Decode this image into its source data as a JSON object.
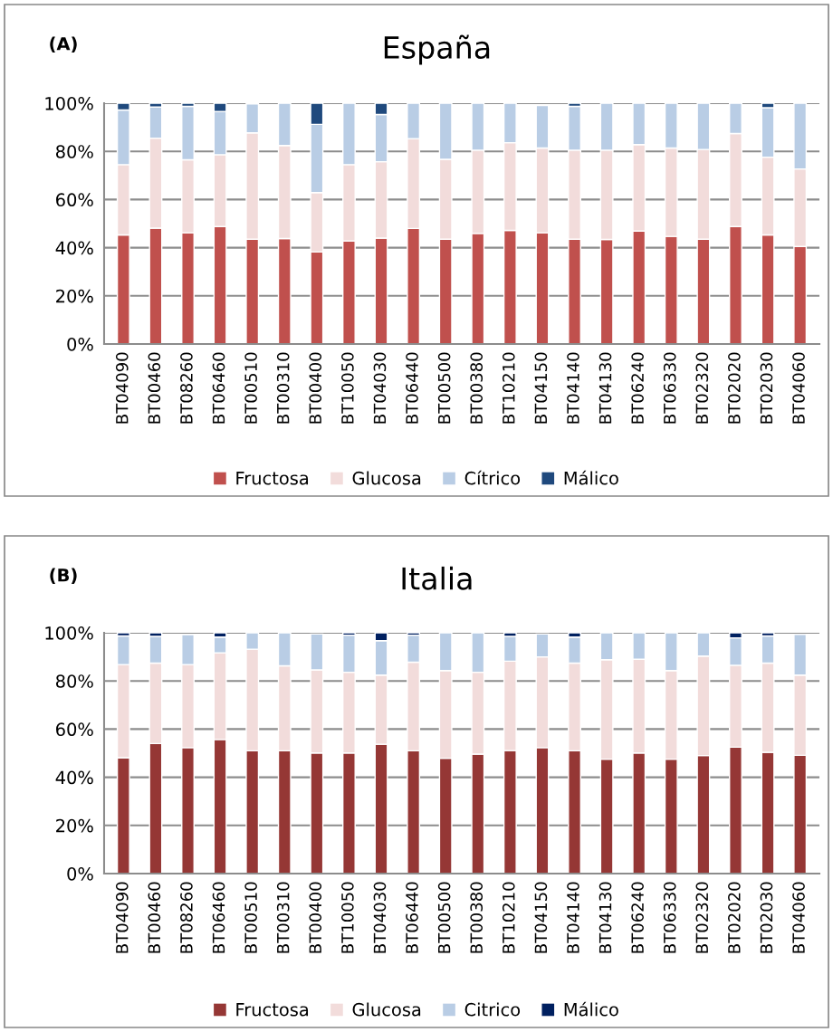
{
  "chart_data": [
    {
      "type": "bar",
      "stacked": true,
      "title": "España",
      "annotations": [
        "(A)"
      ],
      "categories": [
        "BT04090",
        "BT00460",
        "BT08260",
        "BT06460",
        "BT00510",
        "BT00310",
        "BT00400",
        "BT10050",
        "BT04030",
        "BT06440",
        "BT00500",
        "BT00380",
        "BT10210",
        "BT04150",
        "BT04140",
        "BT04130",
        "BT06240",
        "BT06330",
        "BT02320",
        "BT02020",
        "BT02030",
        "BT04060"
      ],
      "series": [
        {
          "name": "Fructosa",
          "color": "#c0504d",
          "values": [
            45.3,
            48.1,
            46.2,
            48.8,
            43.5,
            43.8,
            38.2,
            42.8,
            44.0,
            48.0,
            43.5,
            45.9,
            47.2,
            46.2,
            43.5,
            43.4,
            46.9,
            44.7,
            43.5,
            48.8,
            45.3,
            40.5
          ]
        },
        {
          "name": "Glucosa",
          "color": "#f2dcdb",
          "values": [
            29.2,
            37.4,
            30.3,
            29.8,
            44.2,
            38.6,
            24.7,
            31.7,
            31.7,
            37.3,
            33.2,
            34.6,
            36.4,
            35.2,
            37.0,
            37.1,
            35.9,
            36.7,
            37.3,
            38.6,
            32.3,
            32.2
          ]
        },
        {
          "name": "Cítrico",
          "color": "#b9cde5",
          "values": [
            22.7,
            12.9,
            22.2,
            17.9,
            12.0,
            17.6,
            28.3,
            25.5,
            19.6,
            14.7,
            23.3,
            19.5,
            16.4,
            17.6,
            18.2,
            19.5,
            17.2,
            18.6,
            19.2,
            12.6,
            20.5,
            27.3
          ]
        },
        {
          "name": "Málico",
          "color": "#1f497d",
          "values": [
            2.8,
            1.6,
            1.3,
            3.5,
            null,
            null,
            8.8,
            null,
            4.7,
            null,
            null,
            null,
            null,
            null,
            1.3,
            null,
            null,
            null,
            null,
            null,
            1.9,
            null
          ]
        }
      ],
      "ylim": [
        0,
        100
      ],
      "yticks": [
        {
          "value": 0,
          "label": "0%"
        },
        {
          "value": 20,
          "label": "20%"
        },
        {
          "value": 40,
          "label": "40%"
        },
        {
          "value": 60,
          "label": "60%"
        },
        {
          "value": 80,
          "label": "80%"
        },
        {
          "value": 100,
          "label": "100%"
        }
      ],
      "grid": "y",
      "legend": "bottom"
    },
    {
      "type": "bar",
      "stacked": true,
      "title": "Italia",
      "annotations": [
        "(B)"
      ],
      "categories": [
        "BT04090",
        "BT00460",
        "BT08260",
        "BT06460",
        "BT00510",
        "BT00310",
        "BT00400",
        "BT10050",
        "BT04030",
        "BT06440",
        "BT00500",
        "BT00380",
        "BT10210",
        "BT04150",
        "BT04140",
        "BT04130",
        "BT06240",
        "BT06330",
        "BT02320",
        "BT02020",
        "BT02030",
        "BT04060"
      ],
      "series": [
        {
          "name": "Fructosa",
          "color": "#953735",
          "values": [
            48.1,
            54.0,
            52.3,
            55.7,
            51.0,
            51.0,
            50.1,
            50.1,
            53.7,
            51.0,
            47.9,
            49.6,
            51.1,
            52.3,
            51.0,
            47.5,
            50.1,
            47.5,
            49.0,
            52.5,
            50.4,
            49.1
          ]
        },
        {
          "name": "Glucosa",
          "color": "#f2dcdb",
          "values": [
            38.7,
            33.4,
            34.5,
            36.0,
            42.2,
            35.3,
            34.5,
            33.5,
            28.7,
            36.8,
            36.4,
            34.0,
            37.1,
            37.7,
            36.4,
            41.3,
            38.9,
            36.8,
            41.3,
            34.0,
            37.0,
            33.3
          ]
        },
        {
          "name": "Citrico",
          "color": "#b9cde5",
          "values": [
            11.9,
            11.1,
            12.4,
            6.5,
            6.8,
            13.7,
            14.9,
            15.4,
            14.3,
            11.2,
            15.7,
            16.4,
            10.3,
            9.5,
            10.8,
            11.2,
            11.0,
            15.7,
            9.7,
            11.4,
            11.3,
            16.9
          ]
        },
        {
          "name": "Málico",
          "color": "#002060",
          "values": [
            1.3,
            1.5,
            null,
            1.8,
            null,
            null,
            null,
            1.0,
            3.3,
            1.0,
            null,
            null,
            1.5,
            null,
            1.8,
            null,
            null,
            null,
            null,
            2.1,
            1.3,
            null
          ]
        }
      ],
      "ylim": [
        0,
        100
      ],
      "yticks": [
        {
          "value": 0,
          "label": "0%"
        },
        {
          "value": 20,
          "label": "20%"
        },
        {
          "value": 40,
          "label": "40%"
        },
        {
          "value": 60,
          "label": "60%"
        },
        {
          "value": 80,
          "label": "80%"
        },
        {
          "value": 100,
          "label": "100%"
        }
      ],
      "grid": "y",
      "legend": "bottom"
    }
  ]
}
